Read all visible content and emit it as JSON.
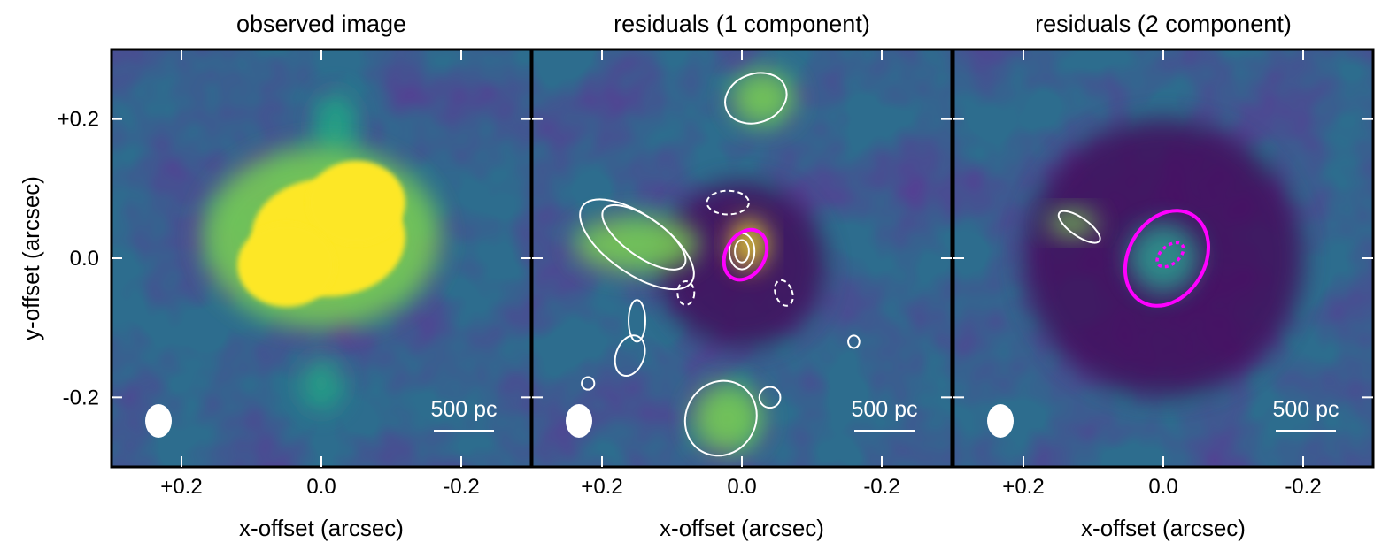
{
  "chart_data": {
    "type": "heatmap",
    "ylabel": "y-offset (arcsec)",
    "xlim": [
      0.3,
      -0.3
    ],
    "ylim": [
      -0.3,
      0.3
    ],
    "x_ticks": [
      "+0.2",
      "0.0",
      "-0.2"
    ],
    "y_ticks": [
      "+0.2",
      "0.0",
      "-0.2"
    ],
    "colormap": "viridis",
    "colors": {
      "frame": "#000000",
      "contour": "#ffffff",
      "ellipse": "#ff00ff",
      "beam": "#ffffff"
    },
    "panels": [
      {
        "title": "observed image",
        "xlabel": "x-offset (arcsec)",
        "scalebar_label": "500 pc",
        "blobs": [
          {
            "x": -0.01,
            "y": 0.03,
            "rx": 0.11,
            "ry": 0.085,
            "level": 1.0
          },
          {
            "x": -0.05,
            "y": 0.08,
            "rx": 0.07,
            "ry": 0.06,
            "level": 1.0
          },
          {
            "x": 0.05,
            "y": -0.01,
            "rx": 0.07,
            "ry": 0.06,
            "level": 1.0
          },
          {
            "x": 0.0,
            "y": 0.03,
            "rx": 0.17,
            "ry": 0.13,
            "level": 0.55
          },
          {
            "x": -0.02,
            "y": 0.19,
            "rx": 0.03,
            "ry": 0.05,
            "level": 0.35
          },
          {
            "x": 0.0,
            "y": -0.18,
            "rx": 0.03,
            "ry": 0.04,
            "level": 0.3
          }
        ],
        "contours": [],
        "ellipses": []
      },
      {
        "title": "residuals (1 component)",
        "xlabel": "x-offset (arcsec)",
        "scalebar_label": "500 pc",
        "blobs": [
          {
            "x": -0.01,
            "y": 0.02,
            "rx": 0.025,
            "ry": 0.035,
            "level": 0.95
          },
          {
            "x": 0.15,
            "y": 0.02,
            "rx": 0.09,
            "ry": 0.04,
            "level": 0.6
          },
          {
            "x": -0.03,
            "y": 0.23,
            "rx": 0.045,
            "ry": 0.04,
            "level": 0.55
          },
          {
            "x": 0.02,
            "y": -0.23,
            "rx": 0.05,
            "ry": 0.05,
            "level": 0.55
          },
          {
            "x": 0.0,
            "y": -0.01,
            "rx": 0.12,
            "ry": 0.12,
            "level": -0.6
          }
        ],
        "contours": [
          {
            "x": 0.15,
            "y": 0.02,
            "rx": 0.095,
            "ry": 0.042,
            "angle": 35,
            "dashed": false
          },
          {
            "x": 0.14,
            "y": 0.03,
            "rx": 0.07,
            "ry": 0.028,
            "angle": 35,
            "dashed": false
          },
          {
            "x": -0.02,
            "y": 0.23,
            "rx": 0.045,
            "ry": 0.035,
            "angle": -20,
            "dashed": false
          },
          {
            "x": 0.03,
            "y": -0.23,
            "rx": 0.05,
            "ry": 0.055,
            "angle": 30,
            "dashed": false
          },
          {
            "x": 0.16,
            "y": -0.14,
            "rx": 0.02,
            "ry": 0.03,
            "angle": 20,
            "dashed": false
          },
          {
            "x": 0.22,
            "y": -0.18,
            "rx": 0.009,
            "ry": 0.009,
            "angle": 0,
            "dashed": false
          },
          {
            "x": 0.15,
            "y": -0.09,
            "rx": 0.012,
            "ry": 0.03,
            "angle": 0,
            "dashed": false
          },
          {
            "x": -0.04,
            "y": -0.2,
            "rx": 0.015,
            "ry": 0.015,
            "angle": 0,
            "dashed": false
          },
          {
            "x": -0.16,
            "y": -0.12,
            "rx": 0.008,
            "ry": 0.009,
            "angle": 0,
            "dashed": false
          },
          {
            "x": 0.0,
            "y": 0.01,
            "rx": 0.018,
            "ry": 0.026,
            "angle": 0,
            "dashed": false
          },
          {
            "x": 0.0,
            "y": 0.01,
            "rx": 0.01,
            "ry": 0.016,
            "angle": 0,
            "dashed": false
          },
          {
            "x": 0.02,
            "y": 0.08,
            "rx": 0.03,
            "ry": 0.017,
            "angle": 0,
            "dashed": true
          },
          {
            "x": 0.08,
            "y": -0.05,
            "rx": 0.012,
            "ry": 0.017,
            "angle": 0,
            "dashed": true
          },
          {
            "x": -0.06,
            "y": -0.05,
            "rx": 0.012,
            "ry": 0.019,
            "angle": -20,
            "dashed": true
          }
        ],
        "ellipses": [
          {
            "x": -0.005,
            "y": 0.005,
            "rx": 0.038,
            "ry": 0.028,
            "angle": -60,
            "dashed": false
          }
        ]
      },
      {
        "title": "residuals (2 component)",
        "xlabel": "x-offset (arcsec)",
        "scalebar_label": "500 pc",
        "blobs": [
          {
            "x": 0.13,
            "y": 0.05,
            "rx": 0.035,
            "ry": 0.018,
            "level": 0.5
          },
          {
            "x": 0.0,
            "y": 0.0,
            "rx": 0.05,
            "ry": 0.05,
            "level": 0.15
          },
          {
            "x": 0.0,
            "y": 0.0,
            "rx": 0.2,
            "ry": 0.2,
            "level": -0.5
          }
        ],
        "contours": [
          {
            "x": 0.12,
            "y": 0.045,
            "rx": 0.035,
            "ry": 0.013,
            "angle": 35,
            "dashed": false
          }
        ],
        "ellipses": [
          {
            "x": -0.005,
            "y": 0.0,
            "rx": 0.072,
            "ry": 0.055,
            "angle": -60,
            "dashed": false
          },
          {
            "x": -0.01,
            "y": 0.005,
            "rx": 0.022,
            "ry": 0.013,
            "angle": -40,
            "dashed": true
          }
        ]
      }
    ]
  }
}
